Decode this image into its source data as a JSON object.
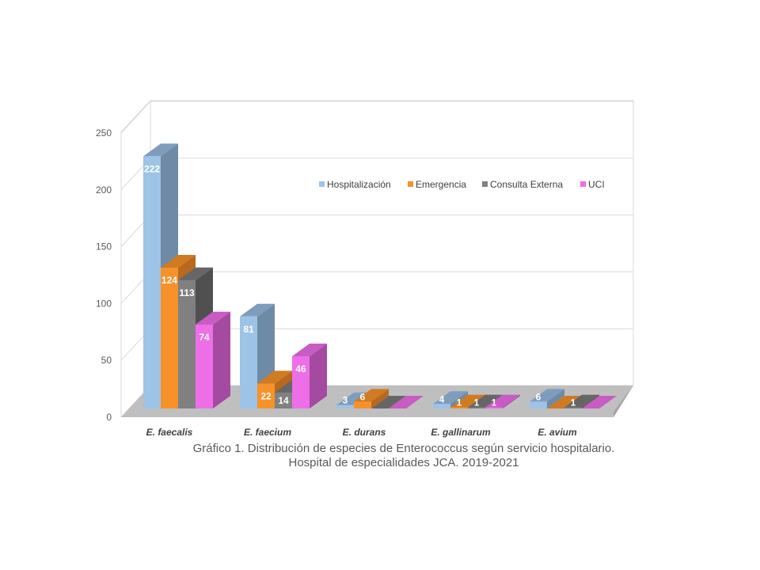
{
  "chart_data": {
    "type": "bar",
    "categories": [
      "E. faecalis",
      "E. faecium",
      "E. durans",
      "E. gallinarum",
      "E. avium"
    ],
    "series": [
      {
        "name": "Hospitalización",
        "values": [
          222,
          81,
          3,
          4,
          6
        ],
        "data_labels": [
          "222",
          "81",
          "3",
          "4",
          "6"
        ]
      },
      {
        "name": "Emergencia",
        "values": [
          124,
          22,
          6,
          1,
          0
        ],
        "data_labels": [
          "124",
          "22",
          "6",
          "1",
          ""
        ]
      },
      {
        "name": "Consulta  Externa",
        "values": [
          113,
          14,
          0,
          1,
          1
        ],
        "data_labels": [
          "113",
          "14",
          "",
          "1",
          "1"
        ]
      },
      {
        "name": "UCI",
        "values": [
          74,
          46,
          0,
          1,
          0
        ],
        "data_labels": [
          "74",
          "46",
          "",
          "1",
          ""
        ]
      }
    ],
    "ylim": [
      0,
      250
    ],
    "yticks": [
      "0",
      "50",
      "100",
      "150",
      "200",
      "250"
    ],
    "colors": {
      "Hospitalización": {
        "front": "#9dc3e6",
        "side": "#6f8aa6",
        "top": "#7e9dbd"
      },
      "Emergencia": {
        "front": "#f7922a",
        "side": "#b8691e",
        "top": "#d07a22"
      },
      "Consulta  Externa": {
        "front": "#808080",
        "side": "#505050",
        "top": "#666666"
      },
      "UCI": {
        "front": "#ee6ee8",
        "side": "#a44aa0",
        "top": "#c95cc4"
      }
    },
    "grid": true,
    "legend_position": "inside-top-right",
    "view": "3d-column"
  },
  "caption": {
    "line1": "Gráfico 1. Distribución de especies de Enterococcus según servicio hospitalario.",
    "line2": "Hospital de especialidades JCA. 2019-2021"
  }
}
